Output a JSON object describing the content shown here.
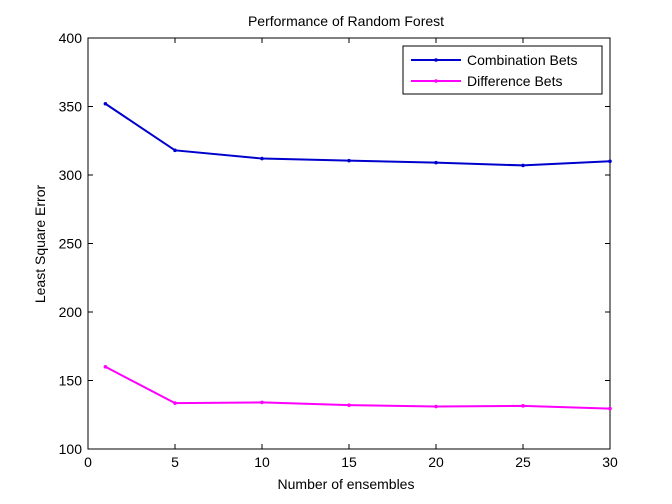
{
  "chart_data": {
    "type": "line",
    "title": "Performance of Random Forest",
    "xlabel": "Number of ensembles",
    "ylabel": "Least Square Error",
    "xlim": [
      0,
      30
    ],
    "ylim": [
      100,
      400
    ],
    "xticks": [
      0,
      5,
      10,
      15,
      20,
      25,
      30
    ],
    "yticks": [
      100,
      150,
      200,
      250,
      300,
      350,
      400
    ],
    "grid": false,
    "legend_position": "top-right",
    "x": [
      1,
      5,
      10,
      15,
      20,
      25,
      30
    ],
    "series": [
      {
        "name": "Combination Bets",
        "color": "#0000cc",
        "marker": "point",
        "values": [
          352,
          318,
          312,
          310.5,
          309,
          307,
          310
        ]
      },
      {
        "name": "Difference Bets",
        "color": "#ff00ff",
        "marker": "point",
        "values": [
          160,
          133.5,
          134,
          132,
          131,
          131.5,
          129.5
        ]
      }
    ]
  }
}
